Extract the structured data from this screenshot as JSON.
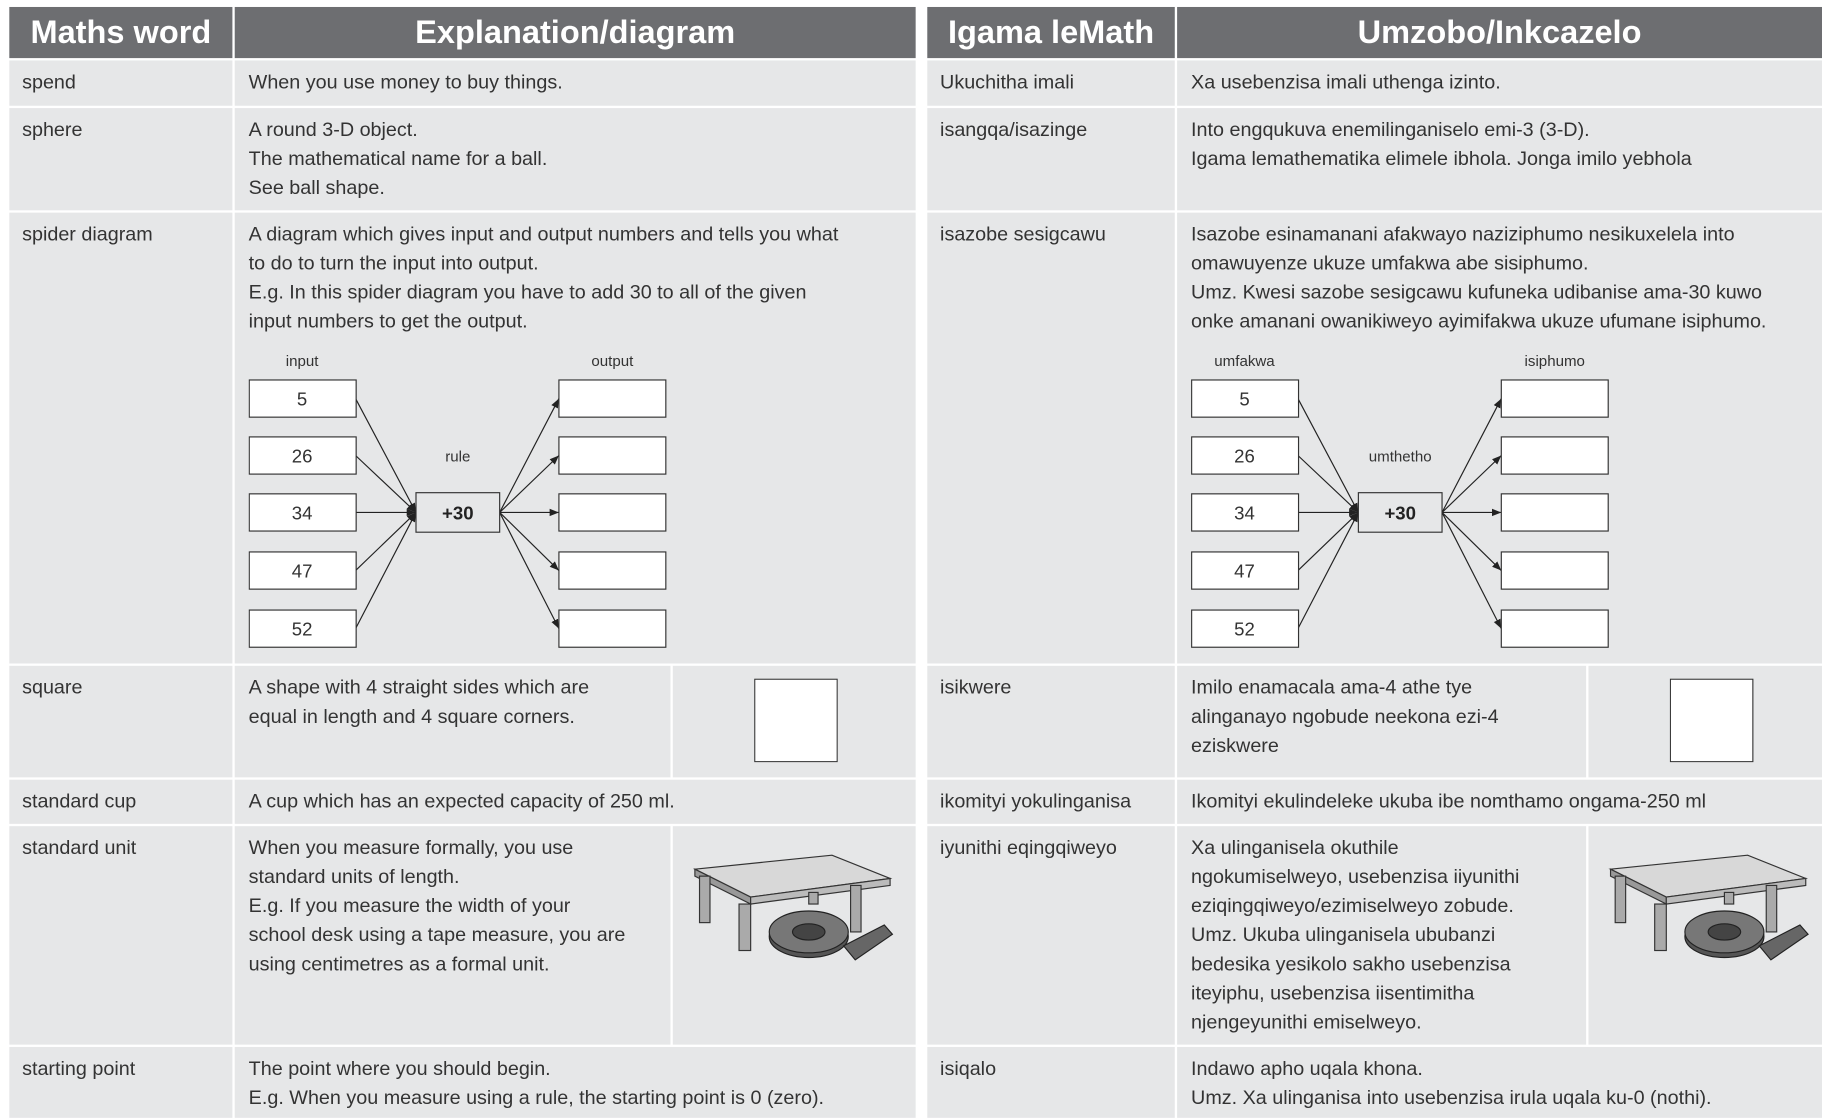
{
  "tables": [
    {
      "headers": [
        "Maths word",
        "Explanation/diagram"
      ],
      "rows": [
        {
          "term": "spend",
          "text": [
            "When you use money to buy things."
          ]
        },
        {
          "term": "sphere",
          "text": [
            "A round 3-D object.",
            "The mathematical name for a ball.",
            "See ball shape."
          ]
        },
        {
          "term": "spider diagram",
          "text": [
            "A diagram which gives input and output numbers and tells you what",
            "to do to turn the input into output.",
            "E.g. In this spider diagram you have to add 30 to all of the given",
            "input numbers to get the output."
          ],
          "diagram": {
            "input_label": "input",
            "output_label": "output",
            "rule_label": "rule",
            "inputs": [
              5,
              26,
              34,
              47,
              52
            ],
            "rule": "+30"
          }
        },
        {
          "term": "square",
          "text": [
            "A shape with 4 straight sides which are",
            "equal in length and 4 square corners."
          ]
        },
        {
          "term": "standard cup",
          "text": [
            "A cup which has an expected capacity of 250 ml."
          ]
        },
        {
          "term": "standard unit",
          "text": [
            "When you measure formally, you use",
            "standard units of length.",
            "E.g. If you measure the width of your",
            "school desk using a tape measure, you are",
            "using centimetres as a formal unit."
          ]
        },
        {
          "term": "starting point",
          "text": [
            "The point where you should begin.",
            "E.g. When you measure using a rule, the starting point is 0 (zero)."
          ]
        }
      ]
    },
    {
      "headers": [
        "Igama leMath",
        "Umzobo/Inkcazelo"
      ],
      "rows": [
        {
          "term": "Ukuchitha imali",
          "text": [
            "Xa usebenzisa imali uthenga izinto."
          ]
        },
        {
          "term": "isangqa/isazinge",
          "text": [
            "Into engqukuva enemilinganiselo emi-3 (3-D).",
            "Igama lemathematika elimele ibhola. Jonga imilo yebhola"
          ]
        },
        {
          "term": "isazobe sesigcawu",
          "text": [
            "Isazobe esinamanani afakwayo naziziphumo nesikuxelela into",
            "omawuyenze ukuze umfakwa abe sisiphumo.",
            "Umz. Kwesi sazobe sesigcawu kufuneka udibanise ama-30 kuwo",
            "onke amanani owanikiweyo ayimifakwa ukuze ufumane isiphumo."
          ],
          "diagram": {
            "input_label": "umfakwa",
            "output_label": "isiphumo",
            "rule_label": "umthetho",
            "inputs": [
              5,
              26,
              34,
              47,
              52
            ],
            "rule": "+30"
          }
        },
        {
          "term": "isikwere",
          "text": [
            "Imilo enamacala ama-4 athe tye",
            "alinganayo ngobude neekona ezi-4",
            "eziskwere"
          ]
        },
        {
          "term": "ikomityi yokulinganisa",
          "text": [
            "Ikomityi ekulindeleke ukuba ibe nomthamo ongama-250 ml"
          ]
        },
        {
          "term": "iyunithi eqingqiweyo",
          "text": [
            "Xa ulinganisela okuthile",
            "ngokumiselweyo, usebenzisa iiyunithi",
            "eziqingqiweyo/ezimiselweyo zobude.",
            "Umz. Ukuba ulinganisela ububanzi",
            "bedesika yesikolo sakho usebenzisa",
            "iteyiphu, usebenzisa iisentimitha",
            "njengeyunithi emiselweyo."
          ]
        },
        {
          "term": "isiqalo",
          "text": [
            "Indawo apho uqala khona.",
            "Umz. Xa ulinganisa into usebenzisa irula uqala ku-0 (nothi)."
          ]
        }
      ]
    }
  ]
}
